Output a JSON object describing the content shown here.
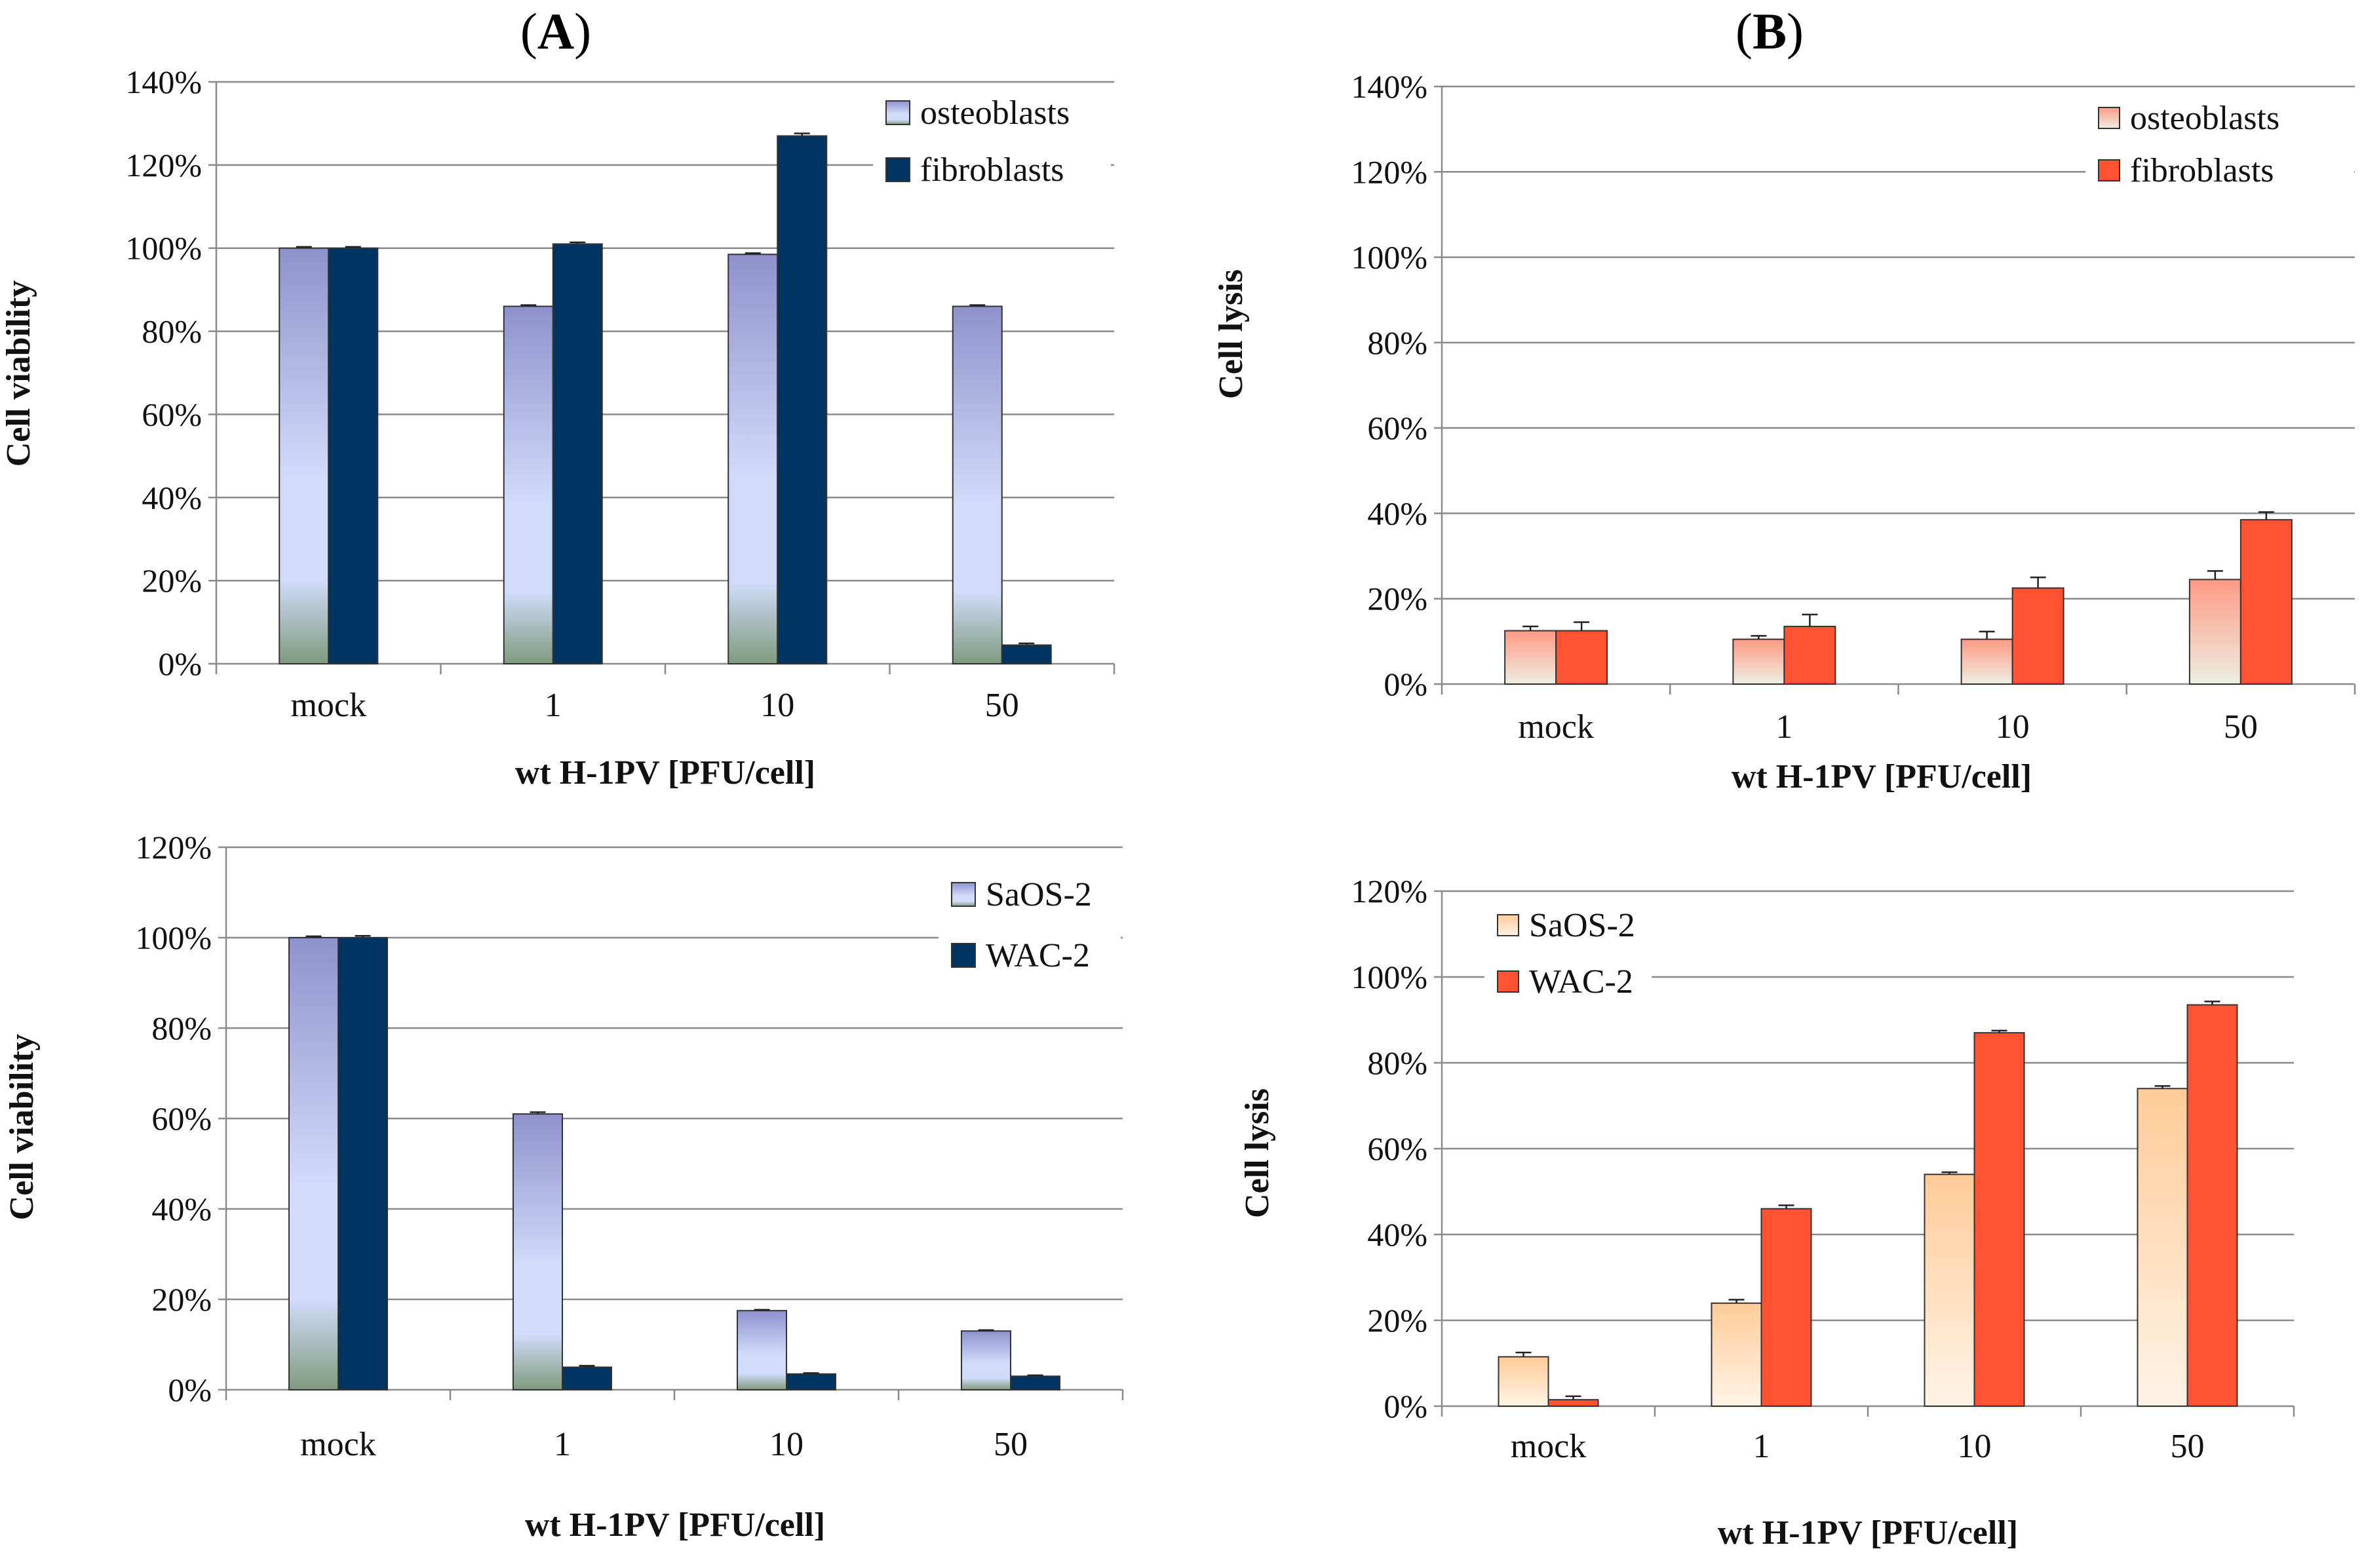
{
  "panel_labels": {
    "A": {
      "open": "(",
      "letter": "A",
      "close": ")"
    },
    "B": {
      "open": "(",
      "letter": "B",
      "close": ")"
    }
  },
  "chart_data": [
    {
      "id": "A1",
      "type": "bar",
      "panel": "A",
      "categories": [
        "mock",
        "1",
        "10",
        "50"
      ],
      "series": [
        {
          "name": "osteoblasts",
          "values": [
            100,
            86,
            98.5,
            86
          ],
          "errors": [
            0.3,
            0.3,
            0.3,
            0.3
          ],
          "style": "blue-gradient"
        },
        {
          "name": "fibroblasts",
          "values": [
            100,
            101,
            127,
            4.5
          ],
          "errors": [
            0.3,
            0.4,
            0.6,
            0.4
          ],
          "style": "navy"
        }
      ],
      "xlabel": "wt H-1PV [PFU/cell]",
      "ylabel": "Cell viability",
      "ylim": [
        0,
        140
      ],
      "yticks": [
        "0%",
        "20%",
        "40%",
        "60%",
        "80%",
        "100%",
        "120%",
        "140%"
      ],
      "legend_position": "top-right",
      "grid": true
    },
    {
      "id": "A2",
      "type": "bar",
      "panel": "A",
      "categories": [
        "mock",
        "1",
        "10",
        "50"
      ],
      "series": [
        {
          "name": "SaOS-2",
          "values": [
            100,
            61,
            17.5,
            13
          ],
          "errors": [
            0.3,
            0.4,
            0.2,
            0.2
          ],
          "style": "blue-gradient"
        },
        {
          "name": "WAC-2",
          "values": [
            100,
            5,
            3.5,
            3
          ],
          "errors": [
            0.4,
            0.3,
            0.2,
            0.2
          ],
          "style": "navy"
        }
      ],
      "xlabel": "wt H-1PV [PFU/cell]",
      "ylabel": "Cell viability",
      "ylim": [
        0,
        120
      ],
      "yticks": [
        "0%",
        "20%",
        "40%",
        "60%",
        "80%",
        "100%",
        "120%"
      ],
      "legend_position": "top-right",
      "grid": true
    },
    {
      "id": "B1",
      "type": "bar",
      "panel": "B",
      "categories": [
        "mock",
        "1",
        "10",
        "50"
      ],
      "series": [
        {
          "name": "osteoblasts",
          "values": [
            12.5,
            10.5,
            10.5,
            24.5
          ],
          "errors": [
            1.0,
            0.8,
            1.8,
            2.0
          ],
          "style": "pink-gradient"
        },
        {
          "name": "fibroblasts",
          "values": [
            12.5,
            13.5,
            22.5,
            38.5
          ],
          "errors": [
            2.0,
            2.8,
            2.5,
            1.8
          ],
          "style": "red"
        }
      ],
      "xlabel": "wt H-1PV [PFU/cell]",
      "ylabel": "Cell lysis",
      "ylim": [
        0,
        140
      ],
      "yticks": [
        "0%",
        "20%",
        "40%",
        "60%",
        "80%",
        "100%",
        "120%",
        "140%"
      ],
      "legend_position": "top-right",
      "grid": true
    },
    {
      "id": "B2",
      "type": "bar",
      "panel": "B",
      "categories": [
        "mock",
        "1",
        "10",
        "50"
      ],
      "series": [
        {
          "name": "SaOS-2",
          "values": [
            11.5,
            24,
            54,
            74
          ],
          "errors": [
            1.0,
            0.8,
            0.5,
            0.6
          ],
          "style": "peach-gradient"
        },
        {
          "name": "WAC-2",
          "values": [
            1.5,
            46,
            87,
            93.5
          ],
          "errors": [
            0.8,
            0.8,
            0.5,
            0.8
          ],
          "style": "red"
        }
      ],
      "xlabel": "wt H-1PV [PFU/cell]",
      "ylabel": "Cell lysis",
      "ylim": [
        0,
        120
      ],
      "yticks": [
        "0%",
        "20%",
        "40%",
        "60%",
        "80%",
        "100%",
        "120%"
      ],
      "legend_position": "top-left",
      "grid": true
    }
  ],
  "colors": {
    "navy": "#003461",
    "red": "#ff5233",
    "gridline": "#8a8a8a",
    "axis": "#8a8a8a",
    "bar_outline": "#333333",
    "error_bar": "#222222",
    "blue_top": "#8e92cc",
    "blue_mid": "#d0dcfa",
    "blue_bottom": "#7f9b7e",
    "pink_top": "#ff9a84",
    "pink_bottom": "#eeeee2",
    "peach_top": "#ffcb98",
    "peach_bottom": "#fff3e6"
  }
}
